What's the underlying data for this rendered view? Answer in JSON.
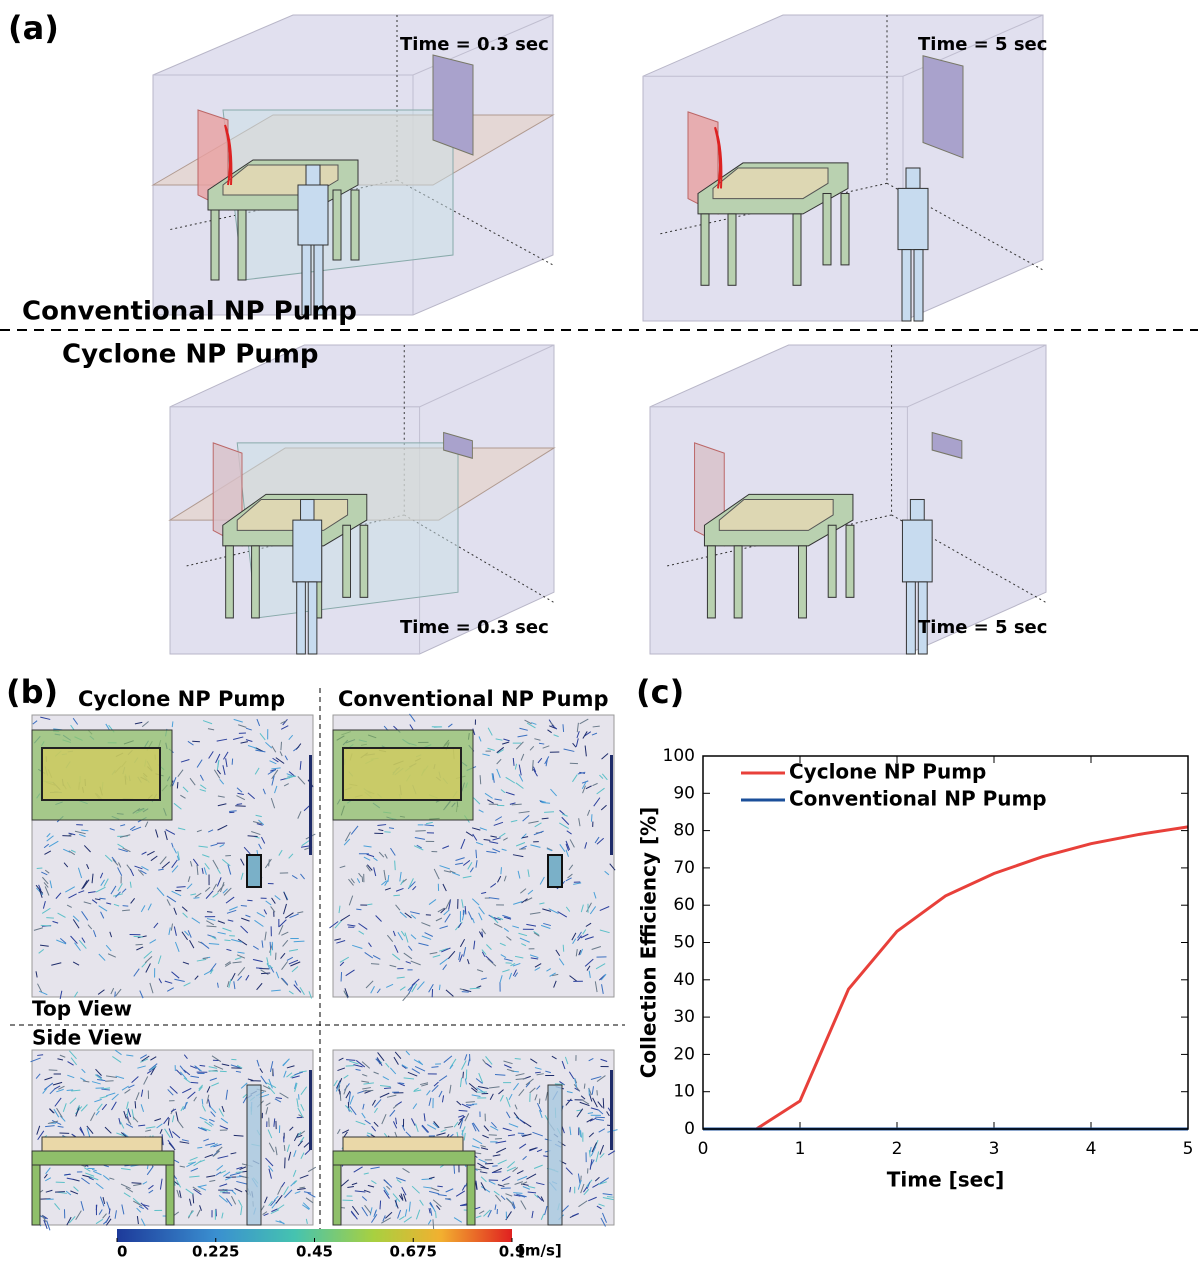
{
  "panel_a": {
    "label": "(a)",
    "top_row": {
      "name": "Conventional NP Pump",
      "times": [
        "Time = 0.3 sec",
        "Time = 5 sec"
      ]
    },
    "bottom_row": {
      "name": "Cyclone NP Pump",
      "times": [
        "Time = 0.3 sec",
        "Time = 5 sec"
      ]
    }
  },
  "panel_b": {
    "label": "(b)",
    "left_title": "Cyclone NP Pump",
    "right_title": "Conventional NP Pump",
    "top_view": "Top View",
    "side_view": "Side View",
    "colorbar": {
      "lim": [
        0,
        0.9
      ],
      "ticks": [
        0,
        0.225,
        0.45,
        0.675,
        0.9
      ],
      "unit": "[m/s]"
    }
  },
  "panel_c": {
    "label": "(c)"
  },
  "chart_data": {
    "type": "line",
    "x_label": "Time [sec]",
    "y_label": "Collection Efficiency [%]",
    "xlim": [
      0,
      5
    ],
    "ylim": [
      0,
      100
    ],
    "xticks": [
      0,
      1,
      2,
      3,
      4,
      5
    ],
    "yticks": [
      0,
      10,
      20,
      30,
      40,
      50,
      60,
      70,
      80,
      90,
      100
    ],
    "legend": "upper left",
    "x": [
      0,
      0.55,
      1,
      1.5,
      2,
      2.5,
      3,
      3.5,
      4,
      4.5,
      5
    ],
    "series": [
      {
        "name": "Cyclone NP Pump",
        "color": "#e8403a",
        "values": [
          0,
          0,
          7.5,
          37.5,
          53,
          62.5,
          68.5,
          73,
          76.5,
          79,
          81
        ]
      },
      {
        "name": "Conventional NP Pump",
        "color": "#1b4f9a",
        "values": [
          0,
          0,
          0,
          0,
          0,
          0,
          0,
          0,
          0,
          0,
          0
        ]
      }
    ]
  }
}
